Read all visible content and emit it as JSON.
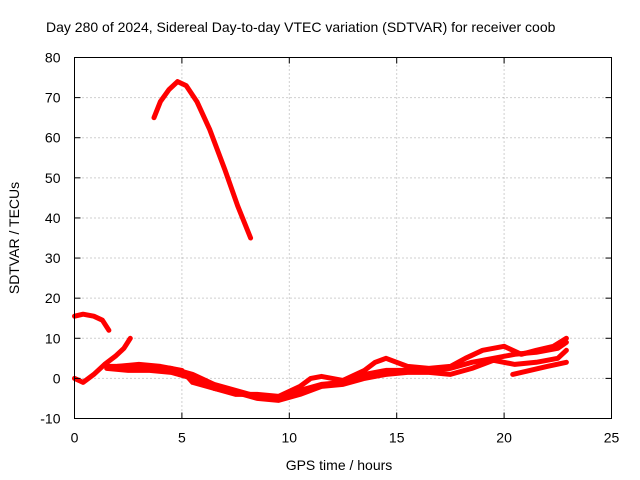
{
  "chart_data": {
    "type": "line",
    "title": "Day 280 of 2024, Sidereal Day-to-day VTEC variation (SDTVAR) for receiver coob",
    "xlabel": "GPS time / hours",
    "ylabel": "SDTVAR / TECUs",
    "xlim": [
      0,
      25
    ],
    "ylim": [
      -10,
      80
    ],
    "xticks": [
      0,
      5,
      10,
      15,
      20,
      25
    ],
    "yticks": [
      -10,
      0,
      10,
      20,
      30,
      40,
      50,
      60,
      70,
      80
    ],
    "grid": true,
    "series_color": "#ff0000",
    "series": [
      {
        "name": "arc-morning-high",
        "points": [
          [
            0,
            15.5
          ],
          [
            0.4,
            16
          ],
          [
            0.9,
            15.5
          ],
          [
            1.3,
            14.5
          ],
          [
            1.6,
            12
          ]
        ]
      },
      {
        "name": "arc-peak",
        "points": [
          [
            3.7,
            65
          ],
          [
            4.0,
            69
          ],
          [
            4.4,
            72
          ],
          [
            4.8,
            74
          ],
          [
            5.2,
            73
          ],
          [
            5.7,
            69
          ],
          [
            6.3,
            62
          ],
          [
            7.0,
            52
          ],
          [
            7.6,
            43
          ],
          [
            8.2,
            35
          ]
        ]
      },
      {
        "name": "arc-rise-early",
        "points": [
          [
            0,
            0
          ],
          [
            0.4,
            -1
          ],
          [
            0.9,
            1
          ],
          [
            1.4,
            3.5
          ],
          [
            1.9,
            5.5
          ],
          [
            2.3,
            7.5
          ],
          [
            2.6,
            10
          ]
        ]
      },
      {
        "name": "arc-main-a",
        "points": [
          [
            1.5,
            3
          ],
          [
            2.5,
            3
          ],
          [
            3.5,
            3
          ],
          [
            4.5,
            2.5
          ],
          [
            5.5,
            1
          ],
          [
            6.5,
            -1.5
          ],
          [
            7.5,
            -3
          ],
          [
            8.5,
            -4.5
          ],
          [
            9.5,
            -5
          ],
          [
            10.5,
            -3
          ],
          [
            11.5,
            -1.5
          ],
          [
            12.5,
            -1
          ],
          [
            13.5,
            1
          ],
          [
            14.5,
            2
          ],
          [
            15.5,
            2
          ],
          [
            16.5,
            2
          ],
          [
            17.5,
            2.5
          ],
          [
            18.5,
            4
          ],
          [
            19.5,
            5
          ],
          [
            20.5,
            6
          ],
          [
            21.5,
            6.5
          ],
          [
            22.5,
            7.5
          ],
          [
            22.9,
            9
          ]
        ]
      },
      {
        "name": "arc-main-b",
        "points": [
          [
            1.5,
            2.5
          ],
          [
            2.5,
            2
          ],
          [
            3.5,
            2
          ],
          [
            4.5,
            1.5
          ],
          [
            5.5,
            0
          ],
          [
            6.5,
            -2.5
          ],
          [
            7.5,
            -3.5
          ],
          [
            8.5,
            -5
          ],
          [
            9.5,
            -5.5
          ],
          [
            10.5,
            -4
          ],
          [
            11.5,
            -2
          ],
          [
            12.5,
            -1.5
          ],
          [
            13.5,
            0
          ],
          [
            14.5,
            1
          ],
          [
            15.5,
            1.5
          ],
          [
            16.5,
            1.5
          ],
          [
            17.5,
            1
          ],
          [
            18.5,
            2.5
          ],
          [
            19.5,
            4.5
          ],
          [
            20.5,
            3.5
          ],
          [
            21.5,
            4
          ],
          [
            22.5,
            5
          ],
          [
            22.9,
            7
          ]
        ]
      },
      {
        "name": "arc-main-c",
        "points": [
          [
            2,
            3
          ],
          [
            3,
            3.5
          ],
          [
            4,
            3
          ],
          [
            5,
            2
          ],
          [
            5.5,
            -1
          ],
          [
            6.5,
            -2.5
          ],
          [
            7.5,
            -4
          ],
          [
            8.5,
            -4
          ],
          [
            9.5,
            -4.5
          ],
          [
            10.5,
            -2
          ],
          [
            11,
            0
          ],
          [
            11.5,
            0.5
          ],
          [
            12.5,
            -0.5
          ],
          [
            13.5,
            2
          ],
          [
            14,
            4
          ],
          [
            14.5,
            5
          ],
          [
            15.5,
            3
          ],
          [
            16.5,
            2.5
          ],
          [
            17.5,
            3
          ],
          [
            18.2,
            5
          ],
          [
            19,
            7
          ],
          [
            20,
            8
          ],
          [
            20.8,
            6
          ],
          [
            21.5,
            7
          ],
          [
            22.3,
            8
          ],
          [
            22.9,
            10
          ]
        ]
      },
      {
        "name": "arc-late-low",
        "points": [
          [
            20.4,
            1
          ],
          [
            21.2,
            2
          ],
          [
            22,
            3
          ],
          [
            22.9,
            4
          ]
        ]
      }
    ]
  }
}
